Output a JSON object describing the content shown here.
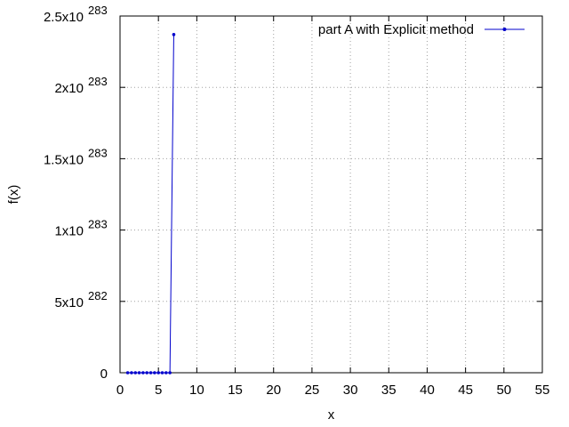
{
  "chart_data": {
    "type": "line",
    "title": "",
    "xlabel": "x",
    "ylabel": "f(x)",
    "xlim": [
      0,
      55
    ],
    "ylim": [
      0,
      2.5e+283
    ],
    "grid": true,
    "legend_position": "top-right",
    "x_ticks": [
      {
        "value": 0,
        "label": "0"
      },
      {
        "value": 5,
        "label": "5"
      },
      {
        "value": 10,
        "label": "10"
      },
      {
        "value": 15,
        "label": "15"
      },
      {
        "value": 20,
        "label": "20"
      },
      {
        "value": 25,
        "label": "25"
      },
      {
        "value": 30,
        "label": "30"
      },
      {
        "value": 35,
        "label": "35"
      },
      {
        "value": 40,
        "label": "40"
      },
      {
        "value": 45,
        "label": "45"
      },
      {
        "value": 50,
        "label": "50"
      },
      {
        "value": 55,
        "label": "55"
      }
    ],
    "y_ticks": [
      {
        "value": 0,
        "mantissa": "0",
        "exponent": ""
      },
      {
        "value": 5e+282,
        "mantissa": "5x10",
        "exponent": "282"
      },
      {
        "value": 1e+283,
        "mantissa": "1x10",
        "exponent": "283"
      },
      {
        "value": 1.5e+283,
        "mantissa": "1.5x10",
        "exponent": "283"
      },
      {
        "value": 2e+283,
        "mantissa": "2x10",
        "exponent": "283"
      },
      {
        "value": 2.5e+283,
        "mantissa": "2.5x10",
        "exponent": "283"
      }
    ],
    "series": [
      {
        "name": "part A with Explicit method",
        "color": "#0000cc",
        "x": [
          1.0,
          1.5,
          2.0,
          2.5,
          3.0,
          3.5,
          4.0,
          4.5,
          5.0,
          5.5,
          6.0,
          6.5,
          7.0
        ],
        "y": [
          0,
          0,
          0,
          0,
          0,
          0,
          0,
          0,
          0,
          0,
          0,
          0,
          2.37e+283
        ]
      }
    ]
  }
}
